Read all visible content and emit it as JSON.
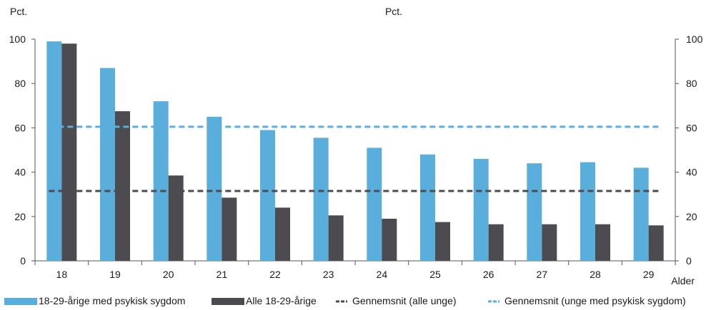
{
  "chart_data": {
    "type": "bar",
    "title": "",
    "ylabel_left": "Pct.",
    "ylabel_right": "Pct.",
    "xlabel": "Alder",
    "categories": [
      "18",
      "19",
      "20",
      "21",
      "22",
      "23",
      "24",
      "25",
      "26",
      "27",
      "28",
      "29"
    ],
    "yticks": [
      "0",
      "20",
      "40",
      "60",
      "80",
      "100"
    ],
    "ylim": [
      0,
      100
    ],
    "grid": false,
    "legend_position": "bottom",
    "series": [
      {
        "name": "18-29-årige med psykisk sygdom",
        "kind": "bar",
        "color": "#5aaedc",
        "values": [
          99,
          87,
          72,
          65,
          59,
          55.5,
          51,
          48,
          46,
          44,
          44.5,
          42
        ]
      },
      {
        "name": "Alle 18-29-årige",
        "kind": "bar",
        "color": "#4b4b50",
        "values": [
          98,
          67.5,
          38.5,
          28.5,
          24,
          20.5,
          19,
          17.5,
          16.5,
          16.5,
          16.5,
          16
        ]
      },
      {
        "name": "Gennemsnit (alle unge)",
        "kind": "dashed-line",
        "color": "#4b4b50",
        "values": [
          31.5,
          31.5,
          31.5,
          31.5,
          31.5,
          31.5,
          31.5,
          31.5,
          31.5,
          31.5,
          31.5,
          31.5
        ]
      },
      {
        "name": "Gennemsnit (unge med psykisk sygdom)",
        "kind": "dashed-line",
        "color": "#5aaedc",
        "values": [
          60.5,
          60.5,
          60.5,
          60.5,
          60.5,
          60.5,
          60.5,
          60.5,
          60.5,
          60.5,
          60.5,
          60.5
        ]
      }
    ]
  }
}
